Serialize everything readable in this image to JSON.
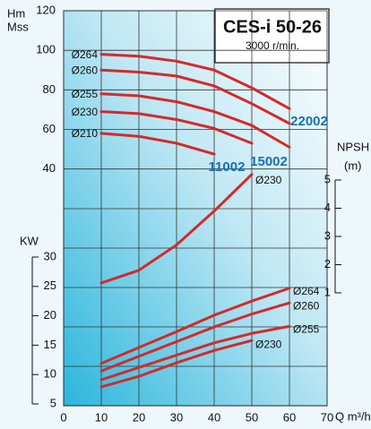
{
  "chart_data": [
    {
      "type": "line",
      "title": "CES-i 50-26",
      "subtitle": "3000 r/min.",
      "y_label": "Hm",
      "y_unit": "Mss",
      "x_label": "Q m³/h",
      "x": [
        10,
        20,
        30,
        40,
        50,
        60
      ],
      "xlim": [
        0,
        70
      ],
      "xticks": [
        0,
        10,
        20,
        30,
        40,
        50,
        60,
        70
      ],
      "ylim": [
        0,
        120
      ],
      "yticks": [
        40,
        60,
        80,
        100,
        120
      ],
      "grid": true,
      "annotations": [
        "11002",
        "15002",
        "22002"
      ],
      "series": [
        {
          "name": "Ø264",
          "color": "#d42a2a",
          "values": [
            98,
            97,
            94.5,
            90,
            81,
            70.5
          ]
        },
        {
          "name": "Ø260",
          "color": "#d42a2a",
          "values": [
            90,
            89,
            87,
            82,
            73,
            63
          ]
        },
        {
          "name": "Ø255",
          "color": "#d42a2a",
          "values": [
            78,
            77,
            74,
            69,
            62,
            51
          ]
        },
        {
          "name": "Ø230",
          "color": "#d42a2a",
          "values": [
            69,
            68,
            65,
            60.5,
            53,
            null
          ]
        },
        {
          "name": "Ø210",
          "color": "#d42a2a",
          "values": [
            58,
            56.5,
            53,
            47.5,
            null,
            null
          ]
        }
      ]
    },
    {
      "type": "line",
      "y_label": "NPSH",
      "y_unit": "(m)",
      "x": [
        10,
        20,
        30,
        40,
        50
      ],
      "ylim": [
        1,
        5
      ],
      "yticks": [
        1,
        2,
        3,
        4,
        5
      ],
      "series": [
        {
          "name": "Ø230",
          "color": "#d42a2a",
          "values": [
            1.35,
            1.8,
            2.7,
            3.9,
            5.2
          ]
        }
      ]
    },
    {
      "type": "line",
      "y_label": "KW",
      "x": [
        10,
        20,
        30,
        40,
        50,
        60
      ],
      "ylim": [
        5,
        30
      ],
      "yticks": [
        5,
        10,
        15,
        20,
        25,
        30
      ],
      "series": [
        {
          "name": "Ø264",
          "color": "#d42a2a",
          "values": [
            11.9,
            14.6,
            17.3,
            20.1,
            22.5,
            24.7
          ]
        },
        {
          "name": "Ø260",
          "color": "#d42a2a",
          "values": [
            10.6,
            13.1,
            15.6,
            18.1,
            20.3,
            22.2
          ]
        },
        {
          "name": "Ø255",
          "color": "#d42a2a",
          "values": [
            9.1,
            11.2,
            13.3,
            15.4,
            17.0,
            18.2
          ]
        },
        {
          "name": "Ø230",
          "color": "#d42a2a",
          "values": [
            7.9,
            9.7,
            12.0,
            14.1,
            15.8,
            null
          ]
        }
      ]
    }
  ]
}
